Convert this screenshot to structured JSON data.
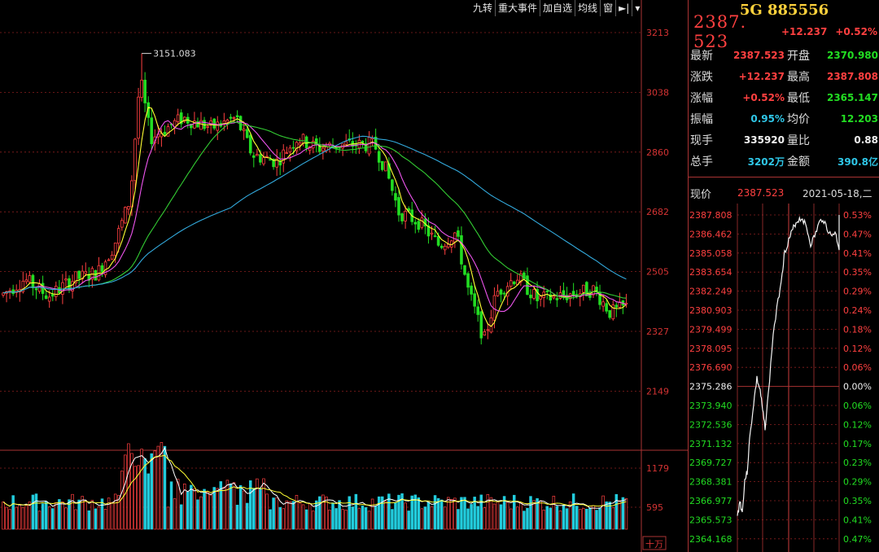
{
  "toolbar": {
    "items": [
      "九转",
      "重大事件",
      "加自选",
      "均线",
      "窗"
    ]
  },
  "kline": {
    "axis_labels": [
      "3213",
      "3038",
      "2860",
      "2682",
      "2505",
      "2327",
      "2149"
    ],
    "peak_label": "3151.083",
    "volume_labels": [
      "1179",
      "595"
    ],
    "volume_unit": "十万"
  },
  "stock": {
    "title": "5G 885556",
    "price": "2387. 523",
    "change": "+12.237",
    "change_pct": "+0.52%"
  },
  "quote": [
    {
      "l1": "最新",
      "v1": "2387.523",
      "c1": "red",
      "l2": "开盘",
      "v2": "2370.980",
      "c2": "green"
    },
    {
      "l1": "涨跌",
      "v1": "+12.237",
      "c1": "red",
      "l2": "最高",
      "v2": "2387.808",
      "c2": "red"
    },
    {
      "l1": "涨幅",
      "v1": "+0.52%",
      "c1": "red",
      "l2": "最低",
      "v2": "2365.147",
      "c2": "green"
    },
    {
      "l1": "振幅",
      "v1": "0.95%",
      "c1": "cyan",
      "l2": "均价",
      "v2": "12.203",
      "c2": "green"
    },
    {
      "l1": "现手",
      "v1": "335920",
      "c1": "white",
      "l2": "量比",
      "v2": "0.88",
      "c2": "white"
    },
    {
      "l1": "总手",
      "v1": "3202万",
      "c1": "cyan",
      "l2": "金额",
      "v2": "390.8亿",
      "c2": "cyan"
    }
  ],
  "now": {
    "label": "现价",
    "price": "2387.523",
    "date": "2021-05-18,二"
  },
  "intraday": {
    "price_labels": [
      "2387.808",
      "2386.462",
      "2385.058",
      "2383.654",
      "2382.249",
      "2380.903",
      "2379.499",
      "2378.095",
      "2376.690",
      "2375.286",
      "2373.940",
      "2372.536",
      "2371.132",
      "2369.727",
      "2368.381",
      "2366.977",
      "2365.573",
      "2364.168"
    ],
    "pct_labels": [
      "0.53%",
      "0.47%",
      "0.41%",
      "0.35%",
      "0.29%",
      "0.24%",
      "0.18%",
      "0.12%",
      "0.06%",
      "0.00%",
      "0.06%",
      "0.12%",
      "0.17%",
      "0.23%",
      "0.29%",
      "0.35%",
      "0.41%",
      "0.47%"
    ],
    "base_index": 9
  },
  "colors": {
    "up": "#ff4040",
    "down": "#22dd22",
    "grid": "#8a1f1f",
    "ma5": "#ffff33",
    "ma10": "#ee55ee",
    "ma20": "#33cc33",
    "ma60": "#33aadd"
  }
}
